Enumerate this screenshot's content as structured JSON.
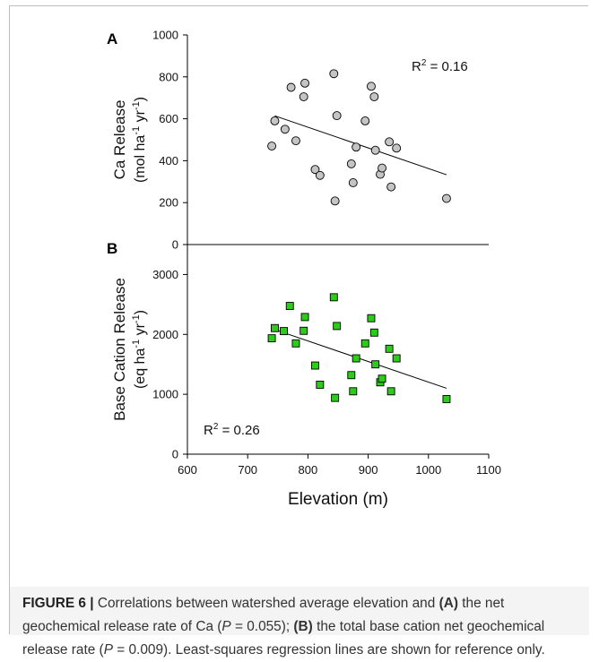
{
  "chart_data": [
    {
      "panel": "A",
      "type": "scatter",
      "ylabel_line1": "Ca Release",
      "ylabel_line2": {
        "open": "(mol ha",
        "exp1": "-1",
        "mid": " yr",
        "exp2": "-1",
        "close": ")"
      },
      "annotation": {
        "base": "R",
        "sup": "2",
        "rest": " = 0.16"
      },
      "ylim": [
        0,
        1000
      ],
      "yticks": [
        "0",
        "200",
        "400",
        "600",
        "800",
        "1000"
      ],
      "marker": "circle",
      "marker_color": "#c4c4c4",
      "points": [
        {
          "x": 740,
          "y": 470
        },
        {
          "x": 745,
          "y": 590
        },
        {
          "x": 762,
          "y": 550
        },
        {
          "x": 772,
          "y": 750
        },
        {
          "x": 780,
          "y": 495
        },
        {
          "x": 793,
          "y": 705
        },
        {
          "x": 795,
          "y": 770
        },
        {
          "x": 812,
          "y": 358
        },
        {
          "x": 820,
          "y": 330
        },
        {
          "x": 843,
          "y": 815
        },
        {
          "x": 845,
          "y": 208
        },
        {
          "x": 848,
          "y": 615
        },
        {
          "x": 872,
          "y": 385
        },
        {
          "x": 875,
          "y": 295
        },
        {
          "x": 880,
          "y": 465
        },
        {
          "x": 895,
          "y": 590
        },
        {
          "x": 905,
          "y": 755
        },
        {
          "x": 910,
          "y": 705
        },
        {
          "x": 912,
          "y": 450
        },
        {
          "x": 920,
          "y": 335
        },
        {
          "x": 923,
          "y": 365
        },
        {
          "x": 935,
          "y": 490
        },
        {
          "x": 938,
          "y": 275
        },
        {
          "x": 947,
          "y": 460
        },
        {
          "x": 1030,
          "y": 220
        }
      ],
      "fit": {
        "x": [
          745,
          1030
        ],
        "y": [
          614,
          333
        ]
      }
    },
    {
      "panel": "B",
      "type": "scatter",
      "ylabel_line1": "Base Cation Release",
      "ylabel_line2": {
        "open": "(eq ha",
        "exp1": "-1",
        "mid": " yr",
        "exp2": "-1",
        "close": ")"
      },
      "annotation": {
        "base": "R",
        "sup": "2",
        "rest": " = 0.26"
      },
      "ylim": [
        0,
        3500
      ],
      "yticks": [
        "0",
        "1000",
        "2000",
        "3000"
      ],
      "xlabel": "Elevation (m)",
      "xlim": [
        600,
        1100
      ],
      "xticks": [
        "600",
        "700",
        "800",
        "900",
        "1000",
        "1100"
      ],
      "marker": "square",
      "marker_color": "#2ecc1a",
      "points": [
        {
          "x": 740,
          "y": 1935
        },
        {
          "x": 745,
          "y": 2105
        },
        {
          "x": 760,
          "y": 2055
        },
        {
          "x": 770,
          "y": 2475
        },
        {
          "x": 780,
          "y": 1850
        },
        {
          "x": 793,
          "y": 2060
        },
        {
          "x": 795,
          "y": 2290
        },
        {
          "x": 812,
          "y": 1480
        },
        {
          "x": 820,
          "y": 1160
        },
        {
          "x": 843,
          "y": 2620
        },
        {
          "x": 845,
          "y": 940
        },
        {
          "x": 848,
          "y": 2140
        },
        {
          "x": 872,
          "y": 1320
        },
        {
          "x": 875,
          "y": 1050
        },
        {
          "x": 880,
          "y": 1600
        },
        {
          "x": 895,
          "y": 1850
        },
        {
          "x": 905,
          "y": 2270
        },
        {
          "x": 910,
          "y": 2030
        },
        {
          "x": 912,
          "y": 1500
        },
        {
          "x": 920,
          "y": 1200
        },
        {
          "x": 923,
          "y": 1260
        },
        {
          "x": 935,
          "y": 1760
        },
        {
          "x": 938,
          "y": 1050
        },
        {
          "x": 947,
          "y": 1600
        },
        {
          "x": 1030,
          "y": 920
        }
      ],
      "fit": {
        "x": [
          745,
          1030
        ],
        "y": [
          2080,
          1100
        ]
      }
    }
  ],
  "caption": {
    "label": "FIGURE 6 |",
    "segments": [
      {
        "t": " Correlations between watershed average elevation and ",
        "s": "n"
      },
      {
        "t": "(A)",
        "s": "b"
      },
      {
        "t": " the net geochemical release rate of Ca (",
        "s": "n"
      },
      {
        "t": "P",
        "s": "i"
      },
      {
        "t": " = 0.055); ",
        "s": "n"
      },
      {
        "t": "(B)",
        "s": "b"
      },
      {
        "t": " the total base cation net geochemical release rate (",
        "s": "n"
      },
      {
        "t": "P",
        "s": "i"
      },
      {
        "t": " = 0.009). Least-squares regression lines are shown for reference only.",
        "s": "n"
      }
    ]
  }
}
